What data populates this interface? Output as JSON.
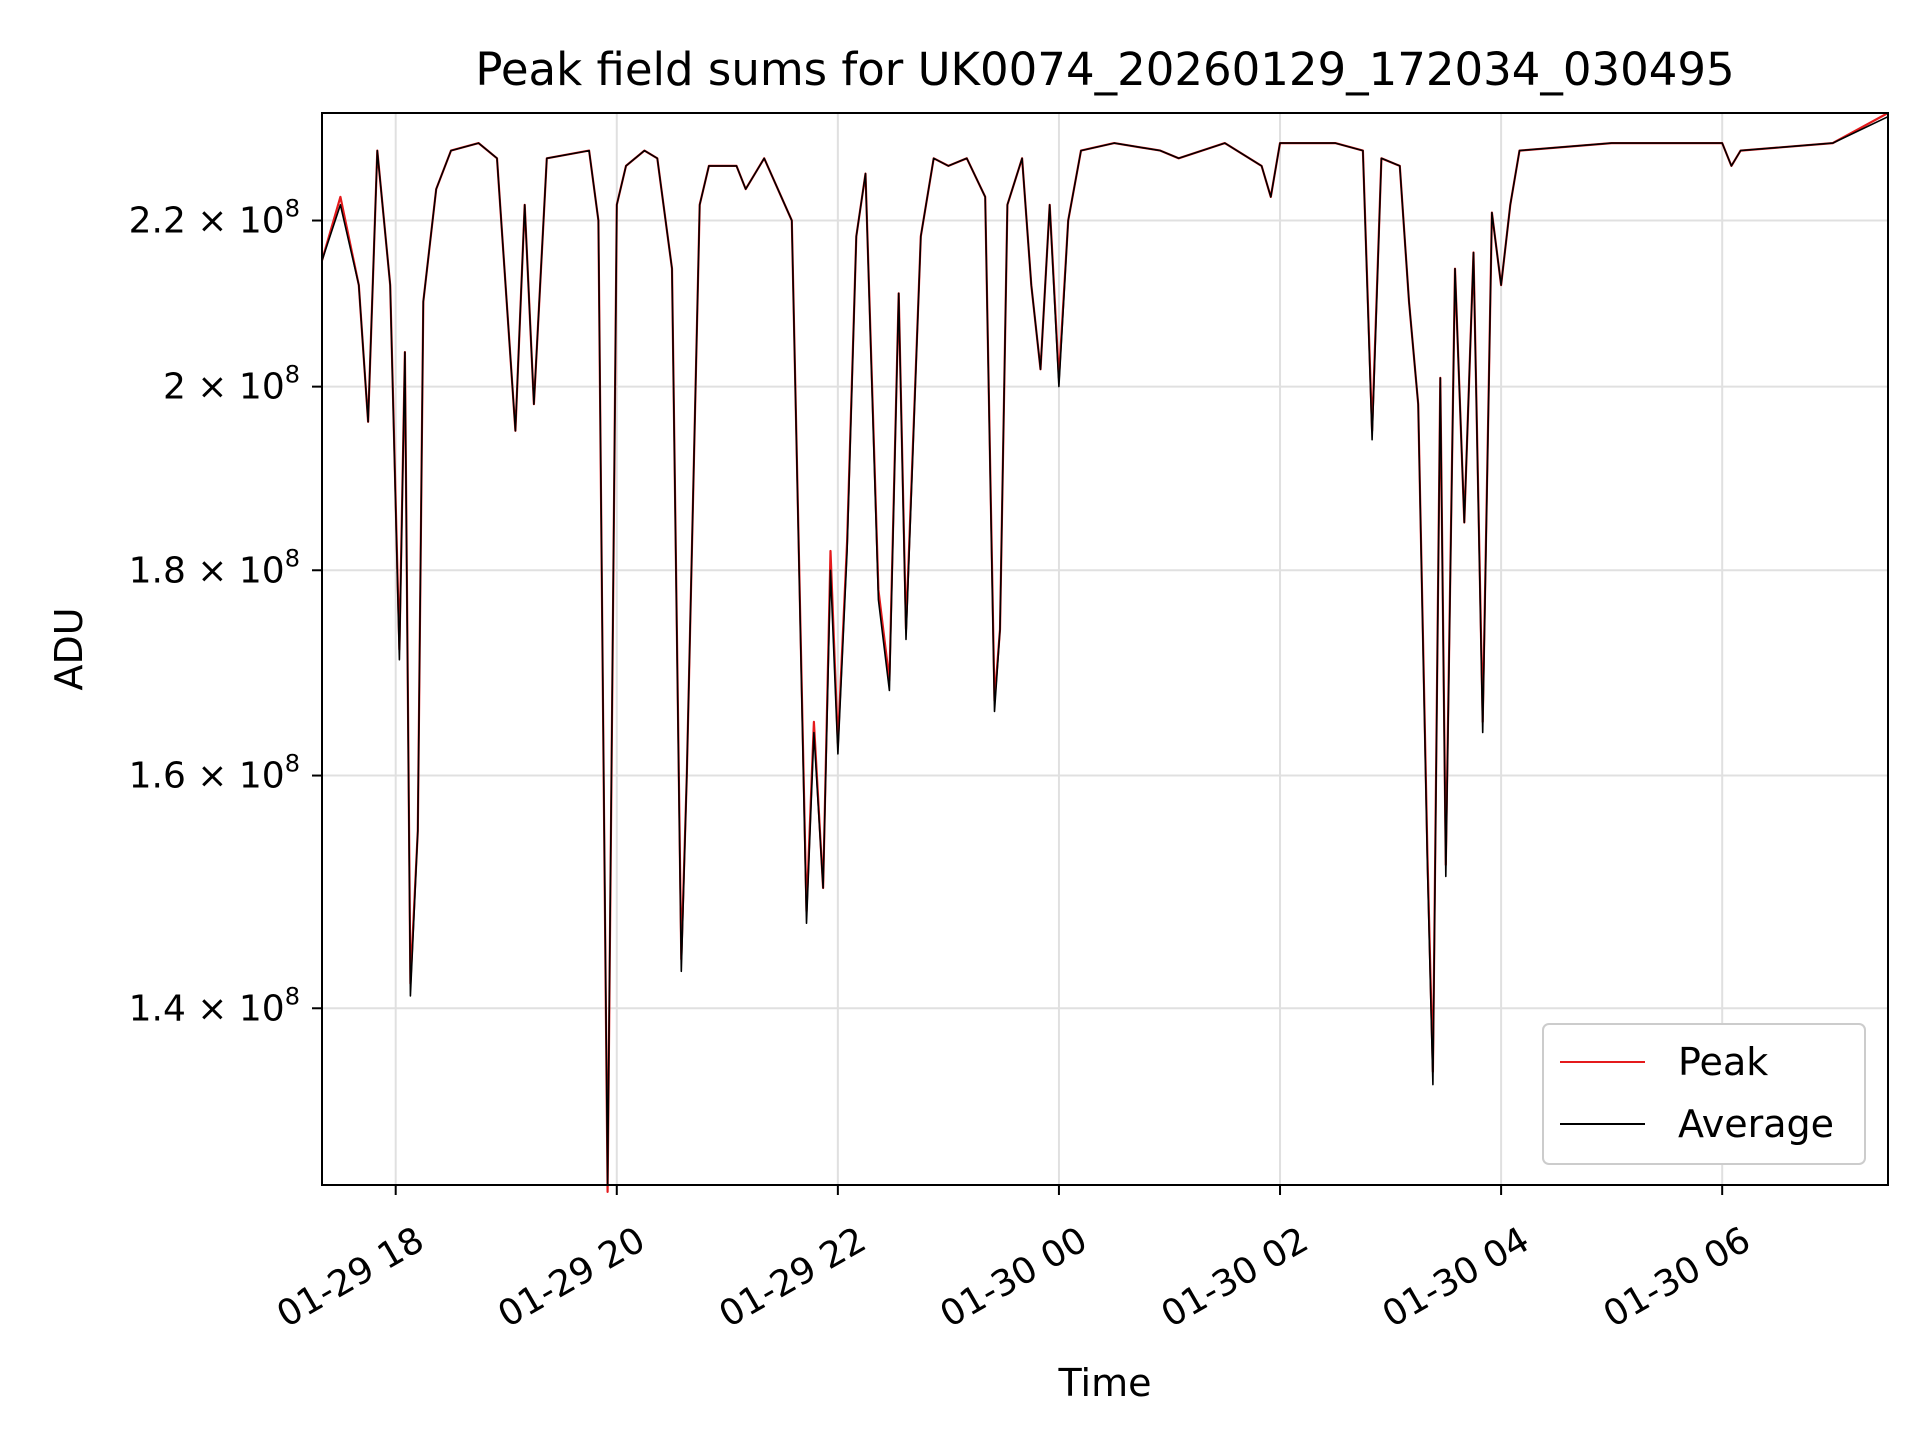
{
  "chart_data": {
    "type": "line",
    "title": "Peak field sums for UK0074_20260129_172034_030495",
    "xlabel": "Time",
    "ylabel": "ADU",
    "yscale": "log",
    "xlim": [
      "2026-01-29 17:20",
      "2026-01-30 07:30"
    ],
    "ylim": [
      126500000.0,
      234000000.0
    ],
    "grid": true,
    "legend_position": "lower-right",
    "x_ticks": [
      {
        "value": "2026-01-29 18:00",
        "label": "01-29 18"
      },
      {
        "value": "2026-01-29 20:00",
        "label": "01-29 20"
      },
      {
        "value": "2026-01-29 22:00",
        "label": "01-29 22"
      },
      {
        "value": "2026-01-30 00:00",
        "label": "01-30 00"
      },
      {
        "value": "2026-01-30 02:00",
        "label": "01-30 02"
      },
      {
        "value": "2026-01-30 04:00",
        "label": "01-30 04"
      },
      {
        "value": "2026-01-30 06:00",
        "label": "01-30 06"
      }
    ],
    "y_ticks": [
      {
        "value": 140000000,
        "mantissa": "1.4",
        "base": "10",
        "exp": "8"
      },
      {
        "value": 160000000,
        "mantissa": "1.6",
        "base": "10",
        "exp": "8"
      },
      {
        "value": 180000000,
        "mantissa": "1.8",
        "base": "10",
        "exp": "8"
      },
      {
        "value": 200000000,
        "mantissa": "2",
        "base": "10",
        "exp": "8"
      },
      {
        "value": 220000000,
        "mantissa": "2.2",
        "base": "10",
        "exp": "8"
      }
    ],
    "colors": {
      "peak": "#e41a1c",
      "average": "#000000",
      "grid": "#e0e0e0"
    },
    "series": [
      {
        "name": "Peak",
        "color": "#e41a1c",
        "points": [
          [
            "2026-01-29 17:20",
            215000000.0
          ],
          [
            "2026-01-29 17:30",
            223000000.0
          ],
          [
            "2026-01-29 17:40",
            212000000.0
          ],
          [
            "2026-01-29 17:45",
            196000000.0
          ],
          [
            "2026-01-29 17:50",
            229000000.0
          ],
          [
            "2026-01-29 17:57",
            212000000.0
          ],
          [
            "2026-01-29 18:02",
            172000000.0
          ],
          [
            "2026-01-29 18:05",
            204000000.0
          ],
          [
            "2026-01-29 18:08",
            142000000.0
          ],
          [
            "2026-01-29 18:12",
            155000000.0
          ],
          [
            "2026-01-29 18:15",
            210000000.0
          ],
          [
            "2026-01-29 18:22",
            224000000.0
          ],
          [
            "2026-01-29 18:30",
            229000000.0
          ],
          [
            "2026-01-29 18:45",
            230000000.0
          ],
          [
            "2026-01-29 18:55",
            228000000.0
          ],
          [
            "2026-01-29 19:05",
            195000000.0
          ],
          [
            "2026-01-29 19:10",
            222000000.0
          ],
          [
            "2026-01-29 19:15",
            198000000.0
          ],
          [
            "2026-01-29 19:22",
            228000000.0
          ],
          [
            "2026-01-29 19:45",
            229000000.0
          ],
          [
            "2026-01-29 19:50",
            220000000.0
          ],
          [
            "2026-01-29 19:55",
            126000000.0
          ],
          [
            "2026-01-29 20:00",
            222000000.0
          ],
          [
            "2026-01-29 20:05",
            227000000.0
          ],
          [
            "2026-01-29 20:15",
            229000000.0
          ],
          [
            "2026-01-29 20:22",
            228000000.0
          ],
          [
            "2026-01-29 20:30",
            214000000.0
          ],
          [
            "2026-01-29 20:35",
            144000000.0
          ],
          [
            "2026-01-29 20:38",
            160000000.0
          ],
          [
            "2026-01-29 20:45",
            222000000.0
          ],
          [
            "2026-01-29 20:50",
            227000000.0
          ],
          [
            "2026-01-29 21:05",
            227000000.0
          ],
          [
            "2026-01-29 21:10",
            224000000.0
          ],
          [
            "2026-01-29 21:20",
            228000000.0
          ],
          [
            "2026-01-29 21:35",
            220000000.0
          ],
          [
            "2026-01-29 21:43",
            148000000.0
          ],
          [
            "2026-01-29 21:47",
            165000000.0
          ],
          [
            "2026-01-29 21:52",
            150000000.0
          ],
          [
            "2026-01-29 21:56",
            182000000.0
          ],
          [
            "2026-01-29 22:00",
            163000000.0
          ],
          [
            "2026-01-29 22:05",
            183000000.0
          ],
          [
            "2026-01-29 22:10",
            218000000.0
          ],
          [
            "2026-01-29 22:15",
            226000000.0
          ],
          [
            "2026-01-29 22:22",
            178000000.0
          ],
          [
            "2026-01-29 22:28",
            169000000.0
          ],
          [
            "2026-01-29 22:33",
            211000000.0
          ],
          [
            "2026-01-29 22:37",
            174000000.0
          ],
          [
            "2026-01-29 22:45",
            218000000.0
          ],
          [
            "2026-01-29 22:52",
            228000000.0
          ],
          [
            "2026-01-29 23:00",
            227000000.0
          ],
          [
            "2026-01-29 23:10",
            228000000.0
          ],
          [
            "2026-01-29 23:20",
            223000000.0
          ],
          [
            "2026-01-29 23:25",
            167000000.0
          ],
          [
            "2026-01-29 23:28",
            174000000.0
          ],
          [
            "2026-01-29 23:32",
            222000000.0
          ],
          [
            "2026-01-29 23:40",
            228000000.0
          ],
          [
            "2026-01-29 23:45",
            212000000.0
          ],
          [
            "2026-01-29 23:50",
            202000000.0
          ],
          [
            "2026-01-29 23:55",
            222000000.0
          ],
          [
            "2026-01-30 00:00",
            201000000.0
          ],
          [
            "2026-01-30 00:05",
            220000000.0
          ],
          [
            "2026-01-30 00:12",
            229000000.0
          ],
          [
            "2026-01-30 00:30",
            230000000.0
          ],
          [
            "2026-01-30 00:55",
            229000000.0
          ],
          [
            "2026-01-30 01:05",
            228000000.0
          ],
          [
            "2026-01-30 01:30",
            230000000.0
          ],
          [
            "2026-01-30 01:50",
            227000000.0
          ],
          [
            "2026-01-30 01:55",
            223000000.0
          ],
          [
            "2026-01-30 02:00",
            230000000.0
          ],
          [
            "2026-01-30 02:30",
            230000000.0
          ],
          [
            "2026-01-30 02:45",
            229000000.0
          ],
          [
            "2026-01-30 02:50",
            195000000.0
          ],
          [
            "2026-01-30 02:55",
            228000000.0
          ],
          [
            "2026-01-30 03:05",
            227000000.0
          ],
          [
            "2026-01-30 03:10",
            210000000.0
          ],
          [
            "2026-01-30 03:15",
            198000000.0
          ],
          [
            "2026-01-30 03:20",
            153000000.0
          ],
          [
            "2026-01-30 03:23",
            135000000.0
          ],
          [
            "2026-01-30 03:27",
            201000000.0
          ],
          [
            "2026-01-30 03:30",
            152000000.0
          ],
          [
            "2026-01-30 03:35",
            214000000.0
          ],
          [
            "2026-01-30 03:40",
            185000000.0
          ],
          [
            "2026-01-30 03:45",
            216000000.0
          ],
          [
            "2026-01-30 03:50",
            165000000.0
          ],
          [
            "2026-01-30 03:55",
            221000000.0
          ],
          [
            "2026-01-30 04:00",
            212000000.0
          ],
          [
            "2026-01-30 04:05",
            222000000.0
          ],
          [
            "2026-01-30 04:10",
            229000000.0
          ],
          [
            "2026-01-30 05:00",
            230000000.0
          ],
          [
            "2026-01-30 06:00",
            230000000.0
          ],
          [
            "2026-01-30 06:05",
            227000000.0
          ],
          [
            "2026-01-30 06:10",
            229000000.0
          ],
          [
            "2026-01-30 07:00",
            230000000.0
          ],
          [
            "2026-01-30 07:30",
            234000000.0
          ]
        ]
      },
      {
        "name": "Average",
        "color": "#000000",
        "points": [
          [
            "2026-01-29 17:20",
            215000000.0
          ],
          [
            "2026-01-29 17:30",
            222000000.0
          ],
          [
            "2026-01-29 17:40",
            212000000.0
          ],
          [
            "2026-01-29 17:45",
            196000000.0
          ],
          [
            "2026-01-29 17:50",
            229000000.0
          ],
          [
            "2026-01-29 17:57",
            212000000.0
          ],
          [
            "2026-01-29 18:02",
            171000000.0
          ],
          [
            "2026-01-29 18:05",
            204000000.0
          ],
          [
            "2026-01-29 18:08",
            141000000.0
          ],
          [
            "2026-01-29 18:12",
            155000000.0
          ],
          [
            "2026-01-29 18:15",
            210000000.0
          ],
          [
            "2026-01-29 18:22",
            224000000.0
          ],
          [
            "2026-01-29 18:30",
            229000000.0
          ],
          [
            "2026-01-29 18:45",
            230000000.0
          ],
          [
            "2026-01-29 18:55",
            228000000.0
          ],
          [
            "2026-01-29 19:05",
            195000000.0
          ],
          [
            "2026-01-29 19:10",
            222000000.0
          ],
          [
            "2026-01-29 19:15",
            198000000.0
          ],
          [
            "2026-01-29 19:22",
            228000000.0
          ],
          [
            "2026-01-29 19:45",
            229000000.0
          ],
          [
            "2026-01-29 19:50",
            220000000.0
          ],
          [
            "2026-01-29 19:55",
            126500000.0
          ],
          [
            "2026-01-29 20:00",
            222000000.0
          ],
          [
            "2026-01-29 20:05",
            227000000.0
          ],
          [
            "2026-01-29 20:15",
            229000000.0
          ],
          [
            "2026-01-29 20:22",
            228000000.0
          ],
          [
            "2026-01-29 20:30",
            214000000.0
          ],
          [
            "2026-01-29 20:35",
            143000000.0
          ],
          [
            "2026-01-29 20:38",
            160000000.0
          ],
          [
            "2026-01-29 20:45",
            222000000.0
          ],
          [
            "2026-01-29 20:50",
            227000000.0
          ],
          [
            "2026-01-29 21:05",
            227000000.0
          ],
          [
            "2026-01-29 21:10",
            224000000.0
          ],
          [
            "2026-01-29 21:20",
            228000000.0
          ],
          [
            "2026-01-29 21:35",
            220000000.0
          ],
          [
            "2026-01-29 21:43",
            147000000.0
          ],
          [
            "2026-01-29 21:47",
            164000000.0
          ],
          [
            "2026-01-29 21:52",
            150000000.0
          ],
          [
            "2026-01-29 21:56",
            180000000.0
          ],
          [
            "2026-01-29 22:00",
            162000000.0
          ],
          [
            "2026-01-29 22:05",
            182000000.0
          ],
          [
            "2026-01-29 22:10",
            218000000.0
          ],
          [
            "2026-01-29 22:15",
            226000000.0
          ],
          [
            "2026-01-29 22:22",
            177000000.0
          ],
          [
            "2026-01-29 22:28",
            168000000.0
          ],
          [
            "2026-01-29 22:33",
            211000000.0
          ],
          [
            "2026-01-29 22:37",
            173000000.0
          ],
          [
            "2026-01-29 22:45",
            218000000.0
          ],
          [
            "2026-01-29 22:52",
            228000000.0
          ],
          [
            "2026-01-29 23:00",
            227000000.0
          ],
          [
            "2026-01-29 23:10",
            228000000.0
          ],
          [
            "2026-01-29 23:20",
            223000000.0
          ],
          [
            "2026-01-29 23:25",
            166000000.0
          ],
          [
            "2026-01-29 23:28",
            174000000.0
          ],
          [
            "2026-01-29 23:32",
            222000000.0
          ],
          [
            "2026-01-29 23:40",
            228000000.0
          ],
          [
            "2026-01-29 23:45",
            212000000.0
          ],
          [
            "2026-01-29 23:50",
            202000000.0
          ],
          [
            "2026-01-29 23:55",
            222000000.0
          ],
          [
            "2026-01-30 00:00",
            200000000.0
          ],
          [
            "2026-01-30 00:05",
            220000000.0
          ],
          [
            "2026-01-30 00:12",
            229000000.0
          ],
          [
            "2026-01-30 00:30",
            230000000.0
          ],
          [
            "2026-01-30 00:55",
            229000000.0
          ],
          [
            "2026-01-30 01:05",
            228000000.0
          ],
          [
            "2026-01-30 01:30",
            230000000.0
          ],
          [
            "2026-01-30 01:50",
            227000000.0
          ],
          [
            "2026-01-30 01:55",
            223000000.0
          ],
          [
            "2026-01-30 02:00",
            230000000.0
          ],
          [
            "2026-01-30 02:30",
            230000000.0
          ],
          [
            "2026-01-30 02:45",
            229000000.0
          ],
          [
            "2026-01-30 02:50",
            194000000.0
          ],
          [
            "2026-01-30 02:55",
            228000000.0
          ],
          [
            "2026-01-30 03:05",
            227000000.0
          ],
          [
            "2026-01-30 03:10",
            210000000.0
          ],
          [
            "2026-01-30 03:15",
            198000000.0
          ],
          [
            "2026-01-30 03:20",
            152000000.0
          ],
          [
            "2026-01-30 03:23",
            134000000.0
          ],
          [
            "2026-01-30 03:27",
            201000000.0
          ],
          [
            "2026-01-30 03:30",
            151000000.0
          ],
          [
            "2026-01-30 03:35",
            214000000.0
          ],
          [
            "2026-01-30 03:40",
            185000000.0
          ],
          [
            "2026-01-30 03:45",
            216000000.0
          ],
          [
            "2026-01-30 03:50",
            164000000.0
          ],
          [
            "2026-01-30 03:55",
            221000000.0
          ],
          [
            "2026-01-30 04:00",
            212000000.0
          ],
          [
            "2026-01-30 04:05",
            222000000.0
          ],
          [
            "2026-01-30 04:10",
            229000000.0
          ],
          [
            "2026-01-30 05:00",
            230000000.0
          ],
          [
            "2026-01-30 06:00",
            230000000.0
          ],
          [
            "2026-01-30 06:05",
            227000000.0
          ],
          [
            "2026-01-30 06:10",
            229000000.0
          ],
          [
            "2026-01-30 07:00",
            230000000.0
          ],
          [
            "2026-01-30 07:30",
            233500000.0
          ]
        ]
      }
    ]
  }
}
